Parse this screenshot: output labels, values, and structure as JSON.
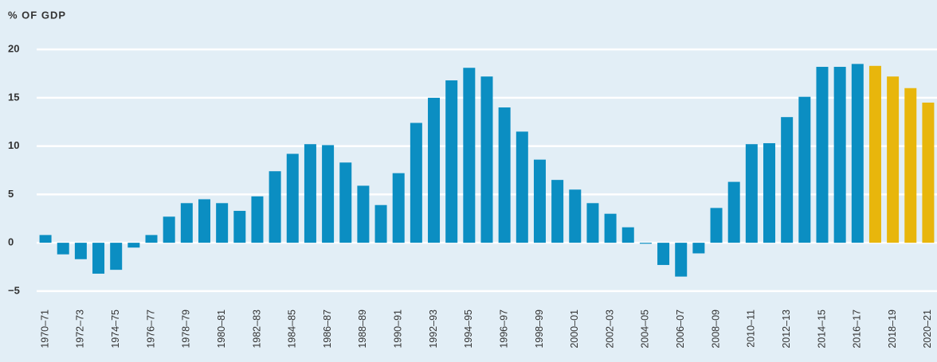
{
  "chart_data": {
    "type": "bar",
    "y_axis_label": "% OF GDP",
    "categories": [
      "1970–71",
      null,
      "1972–73",
      null,
      "1974–75",
      null,
      "1976–77",
      null,
      "1978–79",
      null,
      "1980–81",
      null,
      "1982–83",
      null,
      "1984–85",
      null,
      "1986–87",
      null,
      "1988–89",
      null,
      "1990–91",
      null,
      "1992–93",
      null,
      "1994–95",
      null,
      "1996–97",
      null,
      "1998–99",
      null,
      "2000–01",
      null,
      "2002–03",
      null,
      "2004–05",
      null,
      "2006–07",
      null,
      "2008–09",
      null,
      "2010–11",
      null,
      "2012–13",
      null,
      "2014–15",
      null,
      "2016–17",
      null,
      "2018–19",
      null,
      "2020–21"
    ],
    "values": [
      0.8,
      -1.2,
      -1.7,
      -3.2,
      -2.8,
      -0.5,
      0.8,
      2.7,
      4.1,
      4.5,
      4.1,
      3.3,
      4.8,
      7.4,
      9.2,
      10.2,
      10.1,
      8.3,
      5.9,
      3.9,
      7.2,
      12.4,
      15.0,
      16.8,
      18.1,
      17.2,
      14.0,
      11.5,
      8.6,
      6.5,
      5.5,
      4.1,
      3.0,
      1.6,
      -0.1,
      -2.3,
      -3.5,
      -1.1,
      3.6,
      6.3,
      10.2,
      10.3,
      13.0,
      15.1,
      18.2,
      18.2,
      18.5,
      18.3,
      17.2,
      16.0,
      14.5
    ],
    "colors": [
      "#0b8ec2",
      "#0b8ec2",
      "#0b8ec2",
      "#0b8ec2",
      "#0b8ec2",
      "#0b8ec2",
      "#0b8ec2",
      "#0b8ec2",
      "#0b8ec2",
      "#0b8ec2",
      "#0b8ec2",
      "#0b8ec2",
      "#0b8ec2",
      "#0b8ec2",
      "#0b8ec2",
      "#0b8ec2",
      "#0b8ec2",
      "#0b8ec2",
      "#0b8ec2",
      "#0b8ec2",
      "#0b8ec2",
      "#0b8ec2",
      "#0b8ec2",
      "#0b8ec2",
      "#0b8ec2",
      "#0b8ec2",
      "#0b8ec2",
      "#0b8ec2",
      "#0b8ec2",
      "#0b8ec2",
      "#0b8ec2",
      "#0b8ec2",
      "#0b8ec2",
      "#0b8ec2",
      "#0b8ec2",
      "#0b8ec2",
      "#0b8ec2",
      "#0b8ec2",
      "#0b8ec2",
      "#0b8ec2",
      "#0b8ec2",
      "#0b8ec2",
      "#0b8ec2",
      "#0b8ec2",
      "#0b8ec2",
      "#0b8ec2",
      "#0b8ec2",
      "#e8b60c",
      "#e8b60c",
      "#e8b60c",
      "#e8b60c"
    ],
    "ylim": [
      -6,
      21
    ],
    "yticks": [
      {
        "value": -5,
        "label": "−5"
      },
      0,
      5,
      10,
      15,
      20
    ],
    "grid": true
  }
}
